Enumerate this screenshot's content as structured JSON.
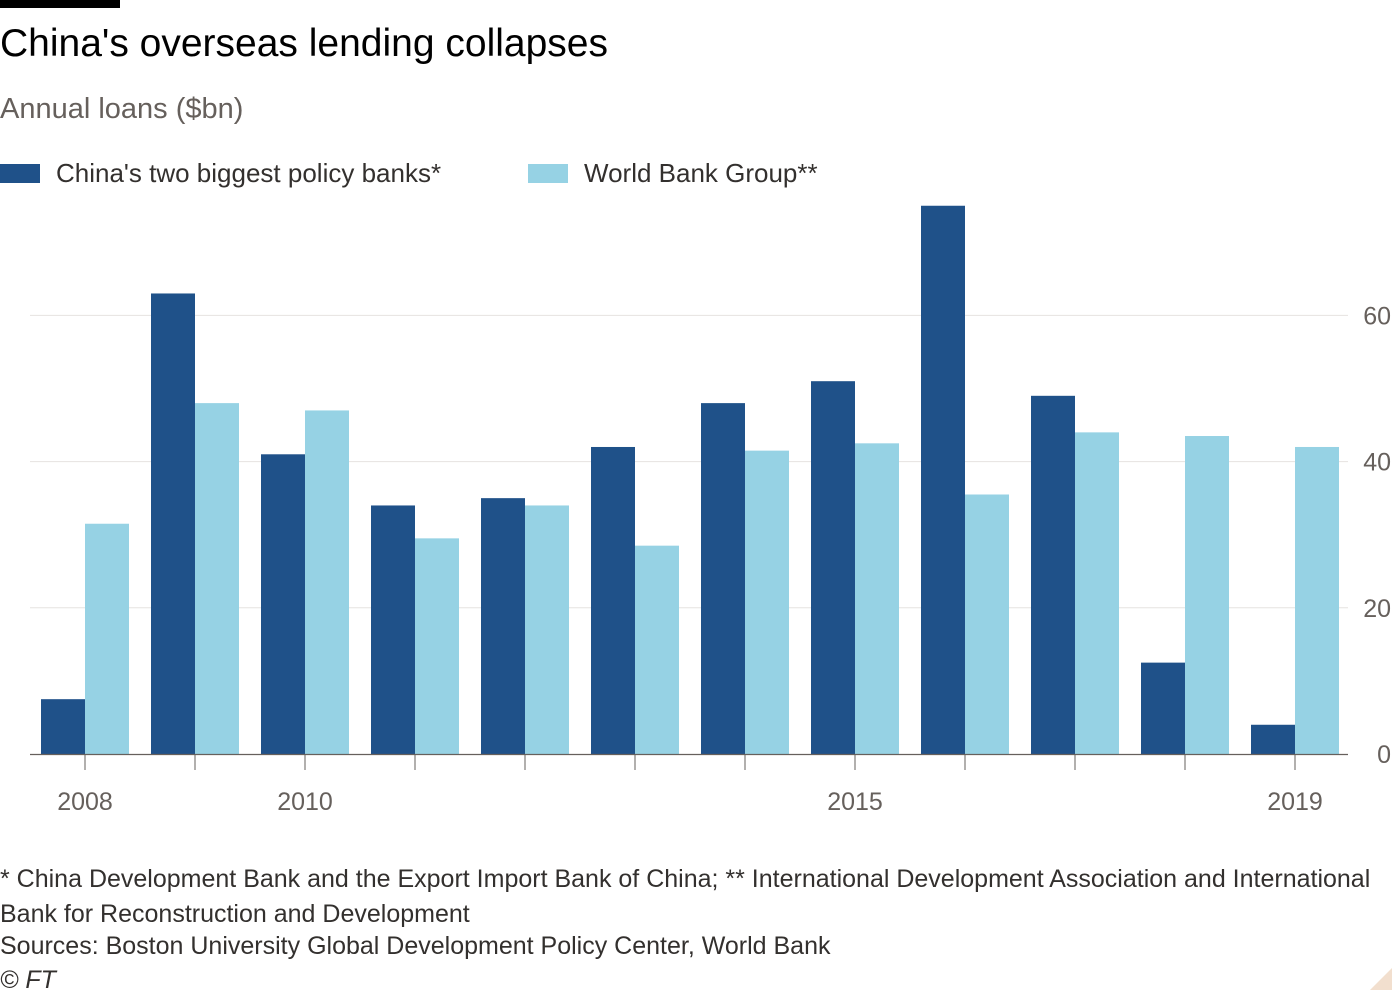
{
  "title": "China's overseas lending collapses",
  "subtitle": "Annual loans ($bn)",
  "legend": [
    {
      "label": "China's two biggest policy banks*",
      "color": "#1f5189"
    },
    {
      "label": "World Bank Group**",
      "color": "#96d2e4"
    }
  ],
  "chart_data": {
    "type": "bar",
    "categories": [
      "2008",
      "2009",
      "2010",
      "2011",
      "2012",
      "2013",
      "2014",
      "2015",
      "2016",
      "2017",
      "2018",
      "2019"
    ],
    "x_tick_labels": [
      "2008",
      "",
      "2010",
      "",
      "",
      "",
      "",
      "2015",
      "",
      "",
      "",
      "2019"
    ],
    "series": [
      {
        "name": "China's two biggest policy banks*",
        "color": "#1f5189",
        "values": [
          7.5,
          63,
          41,
          34,
          35,
          42,
          48,
          51,
          75,
          49,
          12.5,
          4
        ]
      },
      {
        "name": "World Bank Group**",
        "color": "#96d2e4",
        "values": [
          31.5,
          48,
          47,
          29.5,
          34,
          28.5,
          41.5,
          42.5,
          35.5,
          44,
          43.5,
          42
        ]
      }
    ],
    "ylim": [
      0,
      75
    ],
    "y_ticks": [
      0,
      20,
      40,
      60
    ],
    "y_axis_side": "right",
    "grid": true,
    "legend_position": "top-left"
  },
  "footnote": "* China Development Bank and the Export Import Bank of China; ** International Development Association and International Bank for Reconstruction and Development",
  "sources": "Sources: Boston University Global Development Policy Center, World Bank",
  "copyright": "© FT"
}
